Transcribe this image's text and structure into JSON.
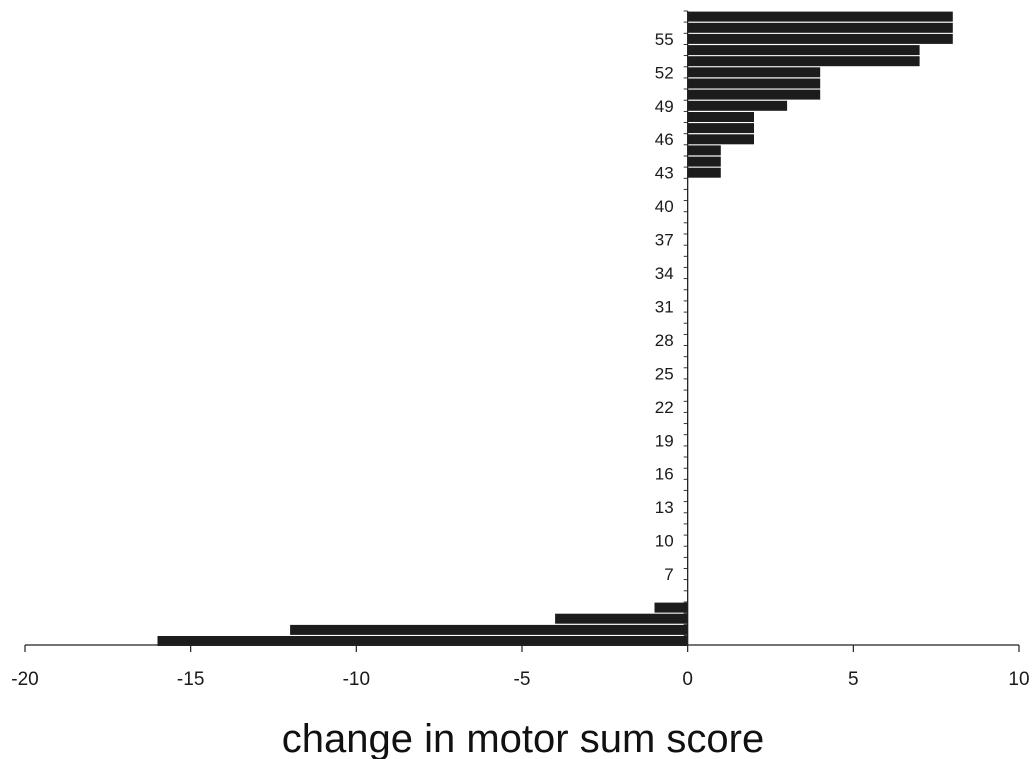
{
  "chart_data": {
    "type": "bar",
    "orientation": "horizontal",
    "xlabel": "change in motor sum score",
    "ylabel": "",
    "xlim": [
      -20,
      10
    ],
    "ylim": [
      1,
      57
    ],
    "x_ticks": [
      -20,
      -15,
      -10,
      -5,
      0,
      5,
      10
    ],
    "y_tick_labels": [
      7,
      10,
      13,
      16,
      19,
      22,
      25,
      28,
      31,
      34,
      37,
      40,
      43,
      46,
      49,
      52,
      55
    ],
    "grid": false,
    "legend": "none",
    "bar_color": "#1c1c1c",
    "bars": [
      {
        "patient": 1,
        "value": -16
      },
      {
        "patient": 2,
        "value": -12
      },
      {
        "patient": 3,
        "value": -4
      },
      {
        "patient": 4,
        "value": -1
      },
      {
        "patient": 43,
        "value": 1
      },
      {
        "patient": 44,
        "value": 1
      },
      {
        "patient": 45,
        "value": 1
      },
      {
        "patient": 46,
        "value": 2
      },
      {
        "patient": 47,
        "value": 2
      },
      {
        "patient": 48,
        "value": 2
      },
      {
        "patient": 49,
        "value": 3
      },
      {
        "patient": 50,
        "value": 4
      },
      {
        "patient": 51,
        "value": 4
      },
      {
        "patient": 52,
        "value": 4
      },
      {
        "patient": 53,
        "value": 7
      },
      {
        "patient": 54,
        "value": 7
      },
      {
        "patient": 55,
        "value": 8
      },
      {
        "patient": 56,
        "value": 8
      },
      {
        "patient": 57,
        "value": 8
      }
    ]
  }
}
